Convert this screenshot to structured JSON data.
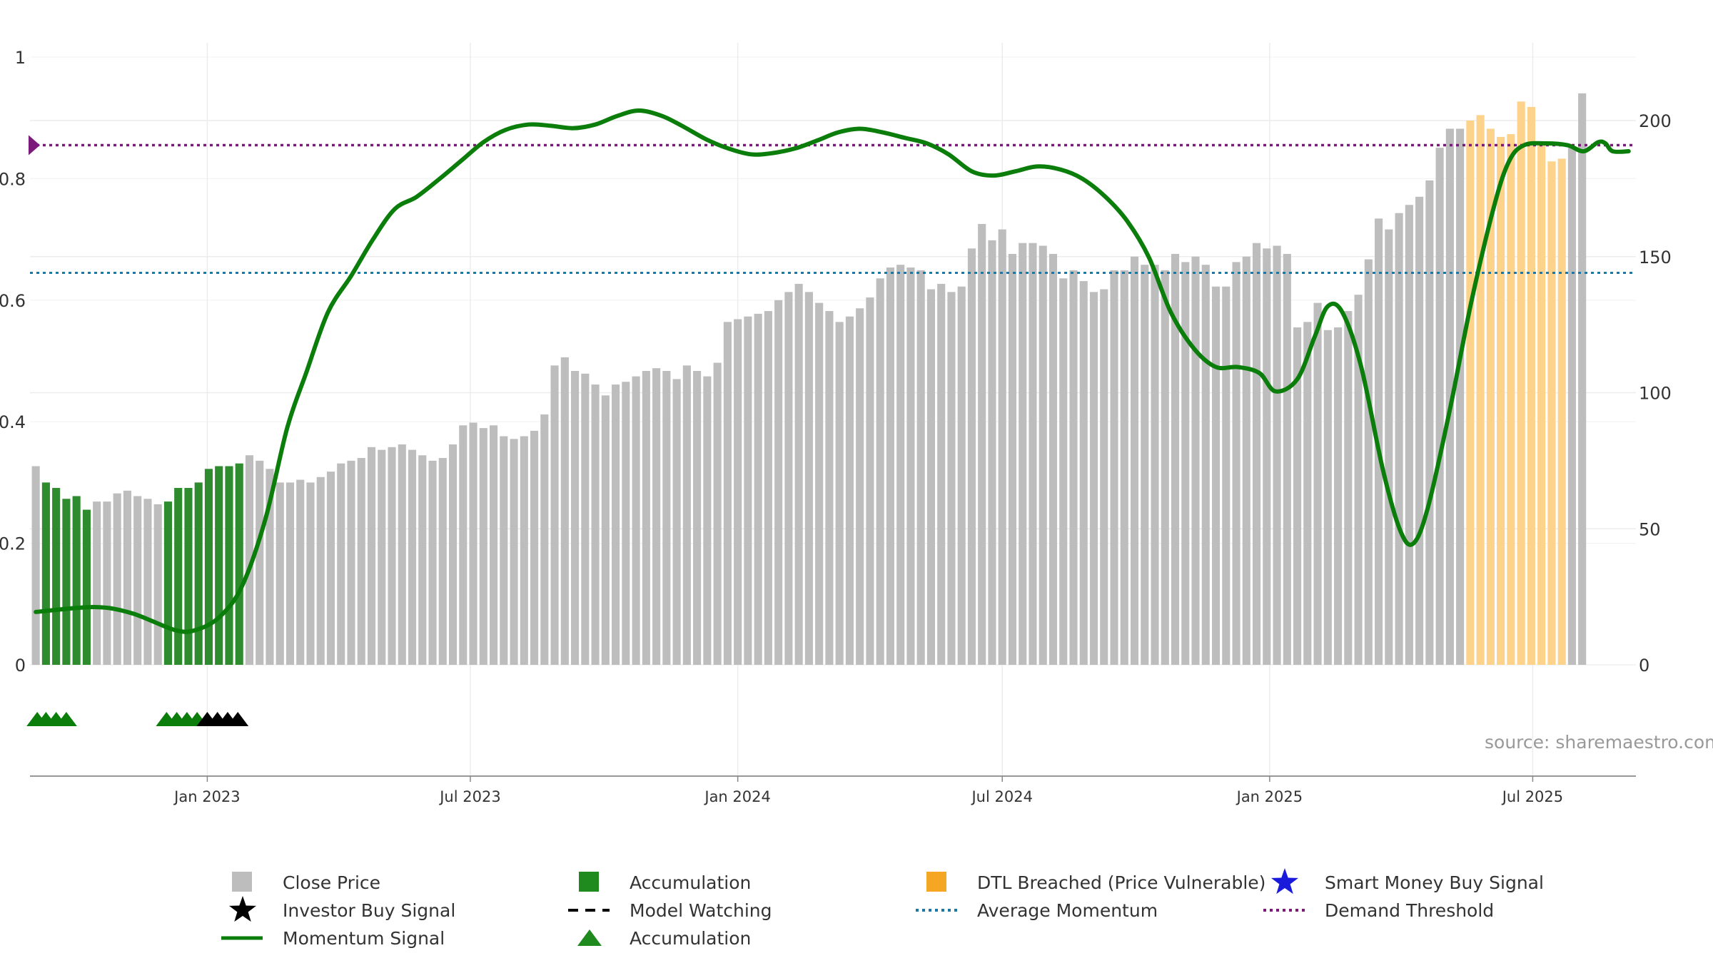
{
  "chart_data": {
    "type": "bar",
    "start_date": "2022-09-05",
    "x_range": [
      "2022-09-01",
      "2025-09-10"
    ],
    "bar_interval_days": 7,
    "close_price": [
      73,
      67,
      65,
      61,
      62,
      57,
      60,
      60,
      63,
      64,
      62,
      61,
      59,
      60,
      65,
      65,
      67,
      72,
      73,
      73,
      74,
      77,
      75,
      72,
      67,
      67,
      68,
      67,
      69,
      71,
      74,
      75,
      76,
      80,
      79,
      80,
      81,
      79,
      77,
      75,
      76,
      81,
      88,
      89,
      87,
      88,
      84,
      83,
      84,
      86,
      92,
      110,
      113,
      108,
      107,
      103,
      99,
      103,
      104,
      106,
      108,
      109,
      108,
      105,
      110,
      108,
      106,
      111,
      126,
      127,
      128,
      129,
      130,
      134,
      137,
      140,
      137,
      133,
      130,
      126,
      128,
      131,
      135,
      142,
      146,
      147,
      146,
      145,
      138,
      140,
      137,
      139,
      153,
      162,
      156,
      160,
      151,
      155,
      155,
      154,
      151,
      142,
      145,
      141,
      137,
      138,
      145,
      145,
      150,
      147,
      147,
      145,
      151,
      148,
      150,
      147,
      139,
      139,
      148,
      150,
      155,
      153,
      154,
      151,
      124,
      126,
      133,
      123,
      124,
      130,
      136,
      149,
      164,
      160,
      166,
      169,
      172,
      178,
      190,
      197,
      197,
      200,
      202,
      197,
      194,
      195,
      207,
      205,
      191,
      185,
      186,
      190,
      210
    ],
    "accumulation_bars": [
      1,
      2,
      3,
      4,
      5,
      13,
      14,
      15,
      16,
      17,
      18,
      19,
      20
    ],
    "dtl_breached_bars": [
      141,
      142,
      143,
      144,
      145,
      146,
      147,
      148,
      149,
      150,
      153
    ],
    "momentum_signal": [
      [
        "2022-09-05",
        0.087
      ],
      [
        "2022-10-15",
        0.095
      ],
      [
        "2022-11-10",
        0.085
      ],
      [
        "2022-12-10",
        0.057
      ],
      [
        "2022-12-25",
        0.058
      ],
      [
        "2023-01-10",
        0.08
      ],
      [
        "2023-01-25",
        0.13
      ],
      [
        "2023-02-10",
        0.24
      ],
      [
        "2023-02-25",
        0.39
      ],
      [
        "2023-03-10",
        0.48
      ],
      [
        "2023-03-25",
        0.58
      ],
      [
        "2023-04-10",
        0.64
      ],
      [
        "2023-04-25",
        0.7
      ],
      [
        "2023-05-10",
        0.75
      ],
      [
        "2023-05-25",
        0.77
      ],
      [
        "2023-06-10",
        0.8
      ],
      [
        "2023-06-25",
        0.83
      ],
      [
        "2023-07-10",
        0.86
      ],
      [
        "2023-07-25",
        0.88
      ],
      [
        "2023-08-10",
        0.889
      ],
      [
        "2023-08-25",
        0.887
      ],
      [
        "2023-09-10",
        0.883
      ],
      [
        "2023-09-25",
        0.889
      ],
      [
        "2023-10-10",
        0.903
      ],
      [
        "2023-10-25",
        0.912
      ],
      [
        "2023-11-10",
        0.903
      ],
      [
        "2023-11-25",
        0.885
      ],
      [
        "2023-12-10",
        0.865
      ],
      [
        "2023-12-25",
        0.85
      ],
      [
        "2024-01-10",
        0.84
      ],
      [
        "2024-01-25",
        0.842
      ],
      [
        "2024-02-10",
        0.85
      ],
      [
        "2024-02-25",
        0.863
      ],
      [
        "2024-03-10",
        0.876
      ],
      [
        "2024-03-25",
        0.882
      ],
      [
        "2024-04-10",
        0.876
      ],
      [
        "2024-04-25",
        0.867
      ],
      [
        "2024-05-10",
        0.858
      ],
      [
        "2024-05-25",
        0.84
      ],
      [
        "2024-06-10",
        0.812
      ],
      [
        "2024-06-25",
        0.805
      ],
      [
        "2024-07-10",
        0.812
      ],
      [
        "2024-07-25",
        0.82
      ],
      [
        "2024-08-10",
        0.815
      ],
      [
        "2024-08-25",
        0.8
      ],
      [
        "2024-09-10",
        0.77
      ],
      [
        "2024-09-25",
        0.73
      ],
      [
        "2024-10-10",
        0.67
      ],
      [
        "2024-10-25",
        0.58
      ],
      [
        "2024-11-10",
        0.52
      ],
      [
        "2024-11-25",
        0.49
      ],
      [
        "2024-12-10",
        0.49
      ],
      [
        "2024-12-25",
        0.48
      ],
      [
        "2025-01-05",
        0.45
      ],
      [
        "2025-01-20",
        0.47
      ],
      [
        "2025-02-01",
        0.54
      ],
      [
        "2025-02-10",
        0.59
      ],
      [
        "2025-02-20",
        0.58
      ],
      [
        "2025-03-05",
        0.49
      ],
      [
        "2025-03-20",
        0.32
      ],
      [
        "2025-04-01",
        0.22
      ],
      [
        "2025-04-10",
        0.2
      ],
      [
        "2025-04-20",
        0.26
      ],
      [
        "2025-05-05",
        0.42
      ],
      [
        "2025-05-20",
        0.6
      ],
      [
        "2025-06-05",
        0.76
      ],
      [
        "2025-06-15",
        0.83
      ],
      [
        "2025-06-25",
        0.855
      ],
      [
        "2025-07-10",
        0.858
      ],
      [
        "2025-07-25",
        0.855
      ],
      [
        "2025-08-05",
        0.845
      ],
      [
        "2025-08-15",
        0.86
      ],
      [
        "2025-08-20",
        0.858
      ],
      [
        "2025-08-25",
        0.845
      ],
      [
        "2025-09-05",
        0.845
      ]
    ],
    "average_momentum": 0.645,
    "demand_threshold": 0.855,
    "accumulation_markers": [
      {
        "date": "2022-09-06",
        "color": "green"
      },
      {
        "date": "2022-09-12",
        "color": "green"
      },
      {
        "date": "2022-09-19",
        "color": "green"
      },
      {
        "date": "2022-09-26",
        "color": "green"
      },
      {
        "date": "2022-12-04",
        "color": "green"
      },
      {
        "date": "2022-12-11",
        "color": "green"
      },
      {
        "date": "2022-12-18",
        "color": "green"
      },
      {
        "date": "2022-12-25",
        "color": "green"
      },
      {
        "date": "2023-01-01",
        "color": "black"
      },
      {
        "date": "2023-01-08",
        "color": "black"
      },
      {
        "date": "2023-01-15",
        "color": "black"
      },
      {
        "date": "2023-01-22",
        "color": "black"
      }
    ],
    "y_left": {
      "min": 0,
      "max": 1,
      "ticks": [
        0,
        0.2,
        0.4,
        0.6,
        0.8,
        1
      ],
      "tick_labels": [
        "0",
        "0.2",
        "0.4",
        "0.6",
        "0.8",
        "1"
      ]
    },
    "y_right": {
      "min": 0,
      "max": 200,
      "ticks": [
        0,
        50,
        100,
        150,
        200
      ],
      "tick_labels": [
        "0",
        "50",
        "100",
        "150",
        "200"
      ]
    },
    "x_ticks": [
      {
        "date": "2023-01-01",
        "label": "Jan 2023"
      },
      {
        "date": "2023-07-01",
        "label": "Jul 2023"
      },
      {
        "date": "2024-01-01",
        "label": "Jan 2024"
      },
      {
        "date": "2024-07-01",
        "label": "Jul 2024"
      },
      {
        "date": "2025-01-01",
        "label": "Jan 2025"
      },
      {
        "date": "2025-07-01",
        "label": "Jul 2025"
      }
    ],
    "source": "source: sharemaestro.com",
    "legend": [
      {
        "label": "Close Price",
        "symbol": "square",
        "color": "#bdbdbd"
      },
      {
        "label": "Investor Buy Signal",
        "symbol": "star",
        "color": "#000000"
      },
      {
        "label": "Momentum Signal",
        "symbol": "line",
        "color": "#0a7d0a"
      },
      {
        "label": "Accumulation",
        "symbol": "square",
        "color": "#1f8b1f"
      },
      {
        "label": "Model Watching",
        "symbol": "dash",
        "color": "#000000"
      },
      {
        "label": "Accumulation",
        "symbol": "triangle",
        "color": "#1f8b1f"
      },
      {
        "label": "DTL Breached (Price Vulnerable)",
        "symbol": "square",
        "color": "#f5a623"
      },
      {
        "label": "Average Momentum",
        "symbol": "dotted",
        "color": "#1f77a4"
      },
      {
        "label": "Smart Money Buy Signal",
        "symbol": "star",
        "color": "#1a1adb"
      },
      {
        "label": "Demand Threshold",
        "symbol": "dotted",
        "color": "#7b1a7b"
      }
    ],
    "colors": {
      "close": "#bdbdbd",
      "accumulation": "#2e8b2e",
      "dtl": "#fdd28a",
      "momentum": "#0a7d0a",
      "avg_momentum": "#1f77a4",
      "demand": "#7b1a7b",
      "grid": "#ececec",
      "axis": "#888888"
    }
  }
}
